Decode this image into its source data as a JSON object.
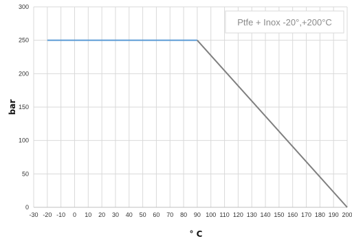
{
  "chart_data": {
    "type": "line",
    "title": "",
    "xlabel": "° C",
    "ylabel": "bar",
    "annotation": "Ptfe + Inox -20°,+200°C",
    "xlim": [
      -30,
      200
    ],
    "ylim": [
      0,
      300
    ],
    "xticks": [
      -30,
      -20,
      -10,
      0,
      10,
      20,
      30,
      40,
      50,
      60,
      70,
      80,
      90,
      100,
      110,
      120,
      130,
      140,
      150,
      160,
      170,
      180,
      190,
      200
    ],
    "yticks": [
      0,
      50,
      100,
      150,
      200,
      250,
      300
    ],
    "grid": true,
    "colors": {
      "segment_flat": "#5b9bd5",
      "segment_decline": "#7f7f7f",
      "grid": "#d9d9d9",
      "axis": "#bfbfbf"
    },
    "series": [
      {
        "x": [
          -20,
          90
        ],
        "y": [
          250,
          250
        ]
      },
      {
        "x": [
          90,
          200
        ],
        "y": [
          250,
          0
        ]
      }
    ]
  }
}
